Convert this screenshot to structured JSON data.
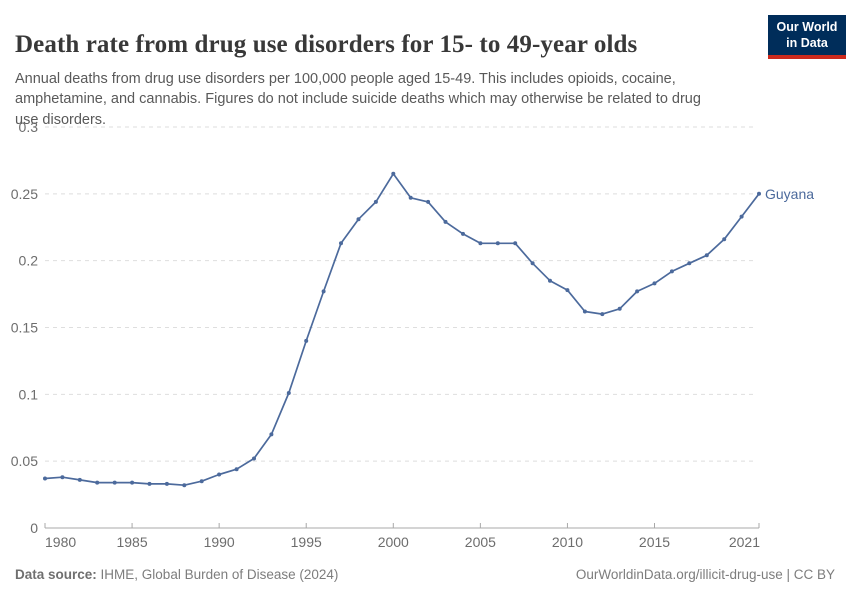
{
  "header": {
    "title": "Death rate from drug use disorders for 15- to 49-year olds",
    "subtitle": "Annual deaths from drug use disorders per 100,000 people aged 15-49. This includes opioids, cocaine, amphetamine, and cannabis. Figures do not include suicide deaths which may otherwise be related to drug use disorders.",
    "logo": {
      "line1": "Our World",
      "line2": "in Data",
      "bg_color": "#002d5a",
      "stripe_color": "#cc2a1d"
    }
  },
  "chart_data": {
    "type": "line",
    "title": "Death rate from drug use disorders for 15- to 49-year olds",
    "xlabel": "",
    "ylabel": "",
    "ylim": [
      0,
      0.3
    ],
    "y_ticks": [
      0,
      0.05,
      0.1,
      0.15,
      0.2,
      0.25,
      0.3
    ],
    "y_tick_labels": [
      "0",
      "0.05",
      "0.1",
      "0.15",
      "0.2",
      "0.25",
      "0.3"
    ],
    "x_ticks": [
      1980,
      1985,
      1990,
      1995,
      2000,
      2005,
      2010,
      2015,
      2021
    ],
    "x_tick_labels": [
      "1980",
      "1985",
      "1990",
      "1995",
      "2000",
      "2005",
      "2010",
      "2015",
      "2021"
    ],
    "grid": "horizontal-dashed",
    "legend_position": "end-of-line-label",
    "x": [
      1980,
      1981,
      1982,
      1983,
      1984,
      1985,
      1986,
      1987,
      1988,
      1989,
      1990,
      1991,
      1992,
      1993,
      1994,
      1995,
      1996,
      1997,
      1998,
      1999,
      2000,
      2001,
      2002,
      2003,
      2004,
      2005,
      2006,
      2007,
      2008,
      2009,
      2010,
      2011,
      2012,
      2013,
      2014,
      2015,
      2016,
      2017,
      2018,
      2019,
      2020,
      2021
    ],
    "series": [
      {
        "name": "Guyana",
        "color": "#4c6a9c",
        "values": [
          0.037,
          0.038,
          0.036,
          0.034,
          0.034,
          0.034,
          0.033,
          0.033,
          0.032,
          0.035,
          0.04,
          0.044,
          0.052,
          0.07,
          0.101,
          0.14,
          0.177,
          0.213,
          0.231,
          0.244,
          0.265,
          0.247,
          0.244,
          0.229,
          0.22,
          0.213,
          0.213,
          0.213,
          0.198,
          0.185,
          0.178,
          0.162,
          0.16,
          0.164,
          0.177,
          0.183,
          0.192,
          0.198,
          0.204,
          0.216,
          0.233,
          0.25
        ]
      }
    ]
  },
  "footer": {
    "source_label": "Data source:",
    "source_text": "IHME, Global Burden of Disease (2024)",
    "rights": "OurWorldinData.org/illicit-drug-use | CC BY"
  }
}
